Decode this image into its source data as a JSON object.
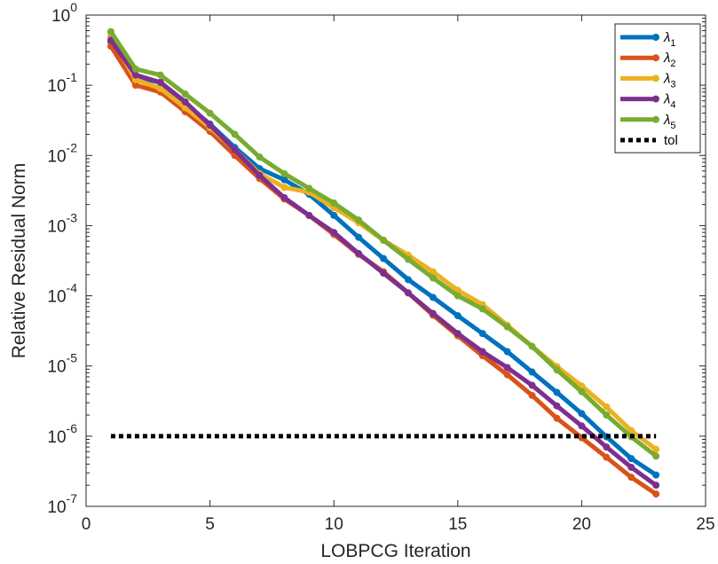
{
  "chart_data": {
    "type": "line",
    "title": "",
    "xlabel": "LOBPCG Iteration",
    "ylabel": "Relative Residual Norm",
    "xlim": [
      0,
      25
    ],
    "ylim": [
      1e-07,
      1
    ],
    "yscale": "log",
    "grid": false,
    "legend_position": "top-right",
    "x_ticks": [
      0,
      5,
      10,
      15,
      20,
      25
    ],
    "x_tick_labels": [
      "0",
      "5",
      "10",
      "15",
      "20",
      "25"
    ],
    "y_ticks": [
      1,
      0.1,
      0.01,
      0.001,
      0.0001,
      1e-05,
      1e-06,
      1e-07
    ],
    "y_tick_labels": [
      {
        "base": "10",
        "exp": "0"
      },
      {
        "base": "10",
        "exp": "-1"
      },
      {
        "base": "10",
        "exp": "-2"
      },
      {
        "base": "10",
        "exp": "-3"
      },
      {
        "base": "10",
        "exp": "-4"
      },
      {
        "base": "10",
        "exp": "-5"
      },
      {
        "base": "10",
        "exp": "-6"
      },
      {
        "base": "10",
        "exp": "-7"
      }
    ],
    "x": [
      1,
      2,
      3,
      4,
      5,
      6,
      7,
      8,
      9,
      10,
      11,
      12,
      13,
      14,
      15,
      16,
      17,
      18,
      19,
      20,
      21,
      22,
      23
    ],
    "series": [
      {
        "name": "λ",
        "sub": "1",
        "color": "#0072BD",
        "values": [
          0.42,
          0.13,
          0.11,
          0.055,
          0.028,
          0.013,
          0.0065,
          0.0045,
          0.0028,
          0.0014,
          0.00068,
          0.00034,
          0.00017,
          9.5e-05,
          5.2e-05,
          2.9e-05,
          1.6e-05,
          8.2e-06,
          4.2e-06,
          2.1e-06,
          9.8e-07,
          4.8e-07,
          2.8e-07
        ]
      },
      {
        "name": "λ",
        "sub": "2",
        "color": "#D95319",
        "values": [
          0.36,
          0.1,
          0.08,
          0.042,
          0.022,
          0.01,
          0.0047,
          0.0024,
          0.0014,
          0.00075,
          0.00039,
          0.00022,
          0.00011,
          5.3e-05,
          2.7e-05,
          1.4e-05,
          7.5e-06,
          3.8e-06,
          1.8e-06,
          9.5e-07,
          5e-07,
          2.6e-07,
          1.5e-07
        ]
      },
      {
        "name": "λ",
        "sub": "3",
        "color": "#EDB120",
        "values": [
          0.5,
          0.12,
          0.09,
          0.048,
          0.025,
          0.012,
          0.0055,
          0.0035,
          0.003,
          0.0018,
          0.0011,
          0.00062,
          0.00038,
          0.00022,
          0.00012,
          7.5e-05,
          3.8e-05,
          1.9e-05,
          9.8e-06,
          5.2e-06,
          2.6e-06,
          1.2e-06,
          6.5e-07
        ]
      },
      {
        "name": "λ",
        "sub": "4",
        "color": "#7E2F8E",
        "values": [
          0.44,
          0.14,
          0.11,
          0.058,
          0.027,
          0.012,
          0.0052,
          0.0025,
          0.0014,
          0.0008,
          0.0004,
          0.00021,
          0.00011,
          5.6e-05,
          2.9e-05,
          1.6e-05,
          9.5e-06,
          5.3e-06,
          2.7e-06,
          1.4e-06,
          7e-07,
          3.6e-07,
          2e-07
        ]
      },
      {
        "name": "λ",
        "sub": "5",
        "color": "#77AC30",
        "values": [
          0.58,
          0.17,
          0.14,
          0.075,
          0.04,
          0.02,
          0.0095,
          0.0055,
          0.0034,
          0.0021,
          0.0012,
          0.00062,
          0.00033,
          0.00018,
          0.0001,
          6.5e-05,
          3.6e-05,
          1.9e-05,
          8.8e-06,
          4.3e-06,
          2e-06,
          9.8e-07,
          5.2e-07
        ]
      },
      {
        "name": "tol",
        "color": "#000000",
        "dashed": true,
        "x": [
          1,
          23
        ],
        "values": [
          1e-06,
          1e-06
        ]
      }
    ]
  }
}
